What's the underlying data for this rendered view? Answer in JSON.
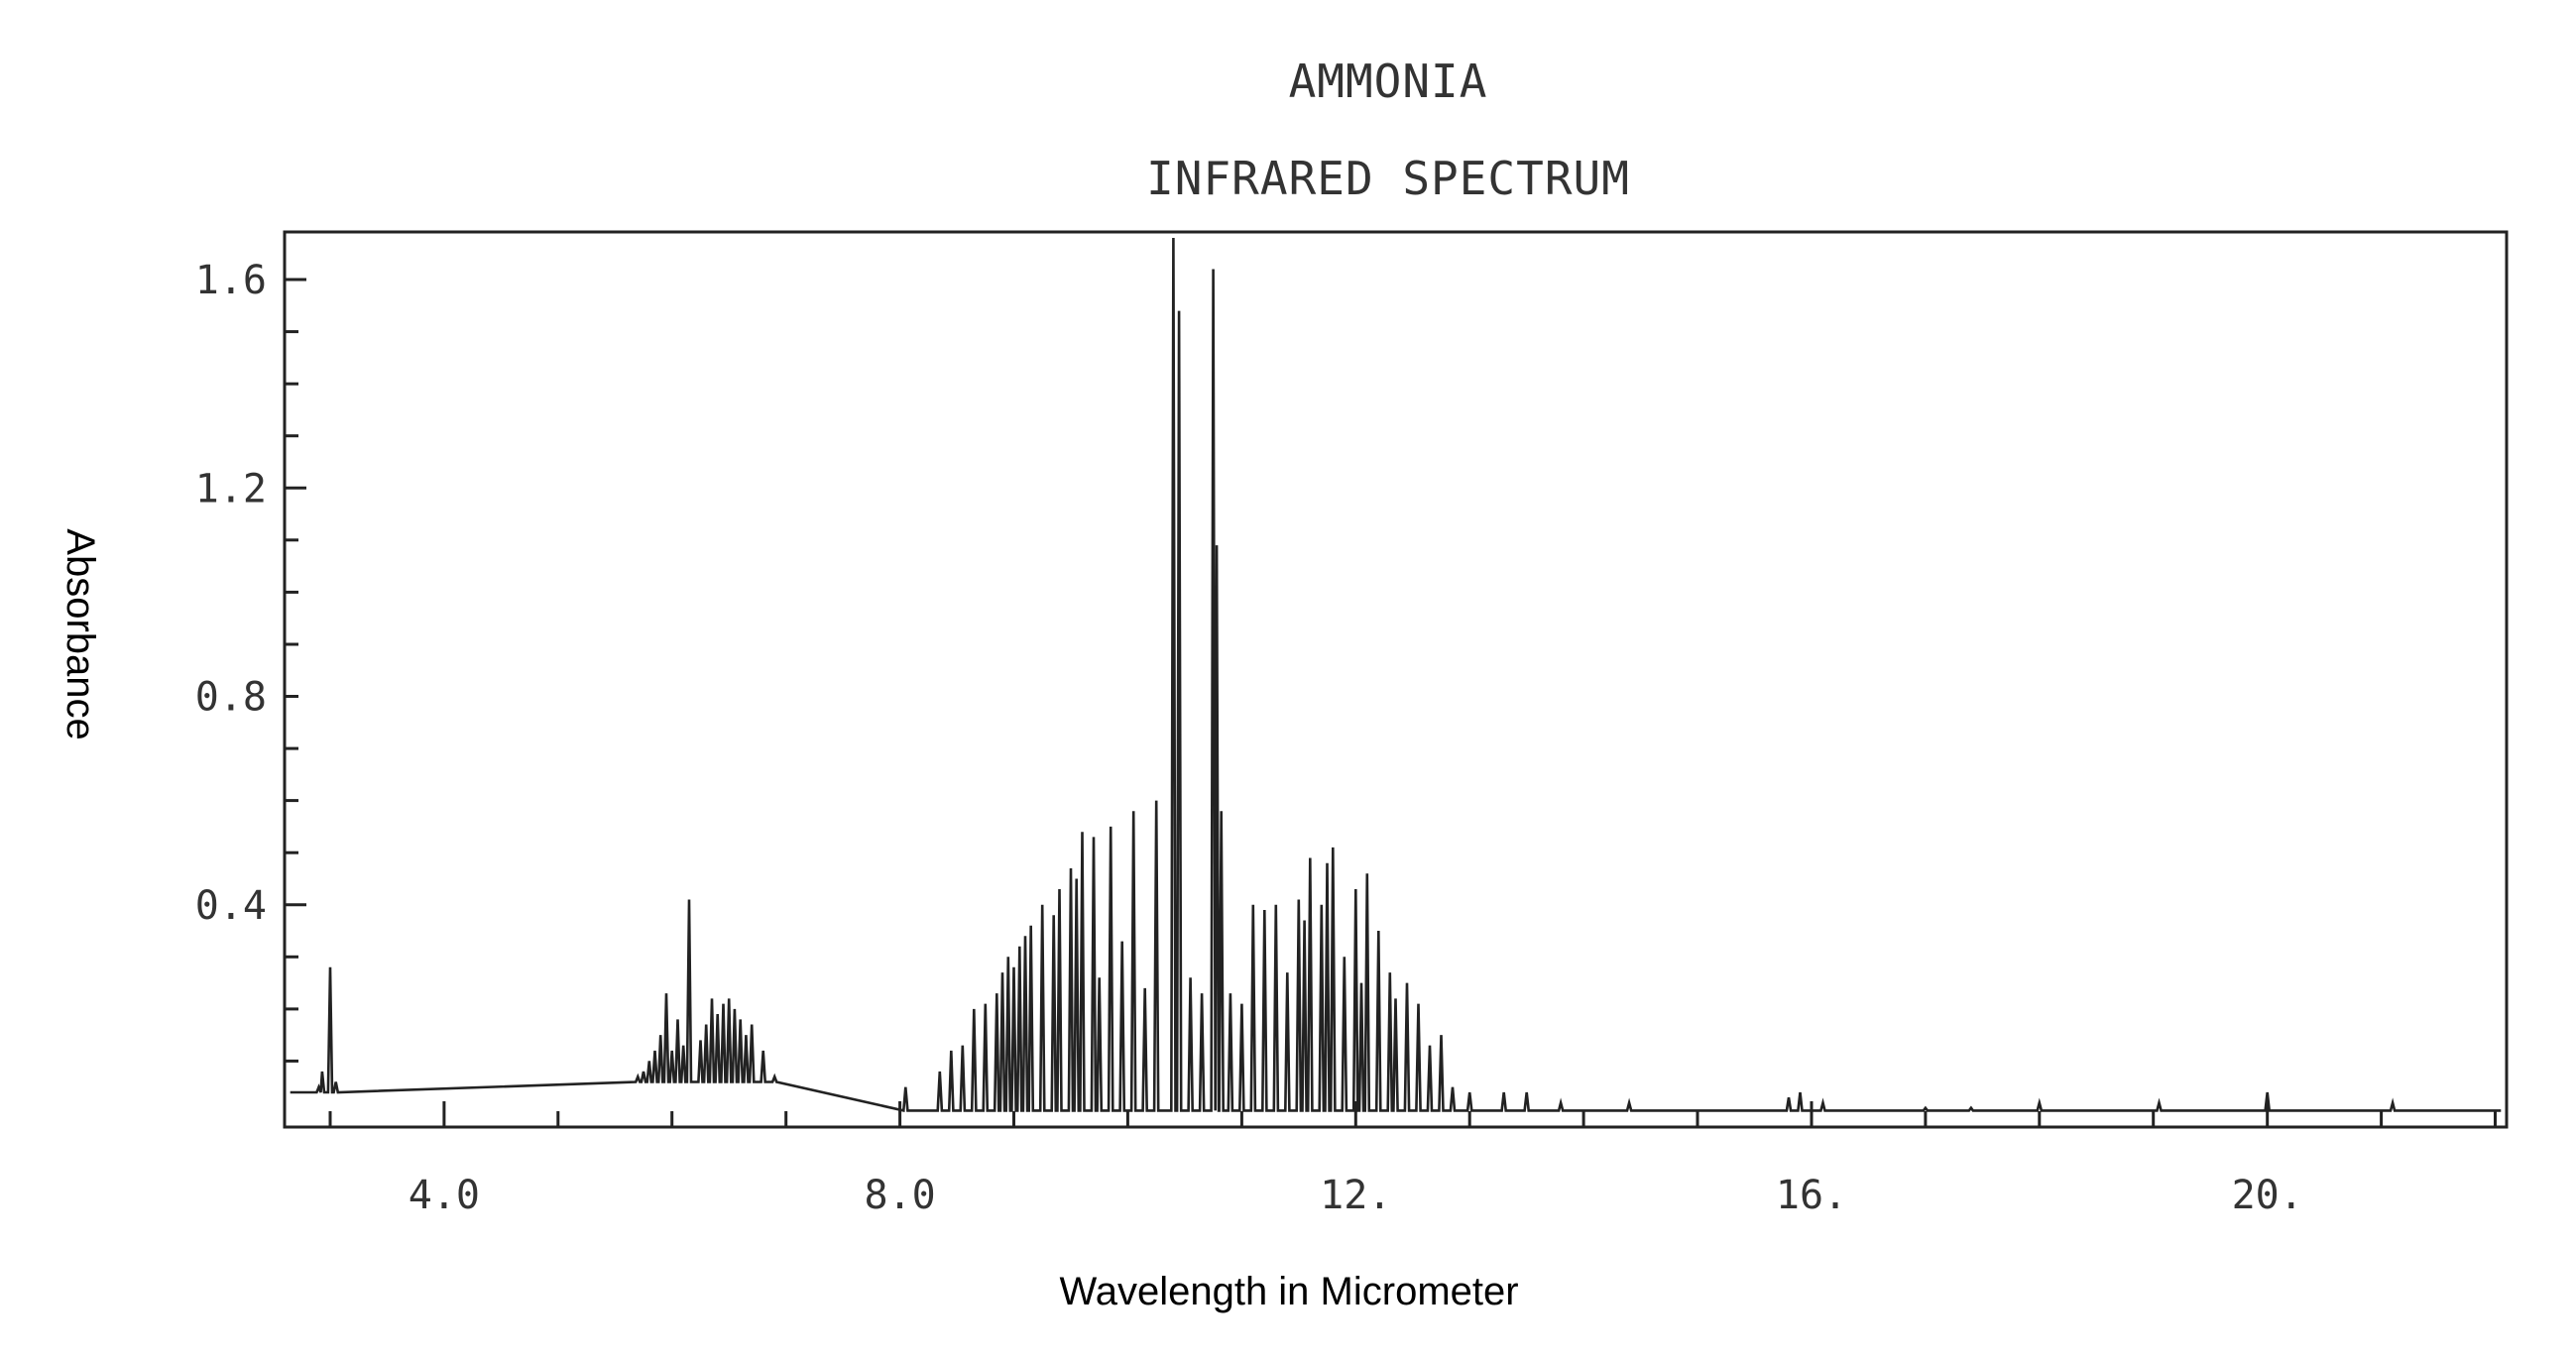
{
  "chart_data": {
    "type": "line",
    "title": "AMMONIA",
    "subtitle": "INFRARED SPECTRUM",
    "xlabel": "Wavelength in Micrometer",
    "ylabel": "Absorbance",
    "xlim": [
      2.6,
      22.1
    ],
    "ylim": [
      0.0,
      1.68
    ],
    "x_ticks": [
      {
        "value": 4.0,
        "label": "4.0"
      },
      {
        "value": 8.0,
        "label": "8.0"
      },
      {
        "value": 12.0,
        "label": "12."
      },
      {
        "value": 16.0,
        "label": "16."
      },
      {
        "value": 20.0,
        "label": "20."
      }
    ],
    "y_ticks": [
      {
        "value": 0.4,
        "label": "0.4"
      },
      {
        "value": 0.8,
        "label": "0.8"
      },
      {
        "value": 1.2,
        "label": "1.2"
      },
      {
        "value": 1.6,
        "label": "1.6"
      }
    ],
    "grid": false,
    "series": [
      {
        "color": "#222222",
        "peaks": [
          [
            2.9,
            0.05
          ],
          [
            2.93,
            0.08
          ],
          [
            3.0,
            0.28
          ],
          [
            3.05,
            0.06
          ],
          [
            5.7,
            0.07
          ],
          [
            5.75,
            0.08
          ],
          [
            5.8,
            0.1
          ],
          [
            5.85,
            0.12
          ],
          [
            5.9,
            0.15
          ],
          [
            5.95,
            0.23
          ],
          [
            6.0,
            0.12
          ],
          [
            6.05,
            0.18
          ],
          [
            6.1,
            0.13
          ],
          [
            6.15,
            0.41
          ],
          [
            6.25,
            0.14
          ],
          [
            6.3,
            0.17
          ],
          [
            6.35,
            0.22
          ],
          [
            6.4,
            0.19
          ],
          [
            6.45,
            0.21
          ],
          [
            6.5,
            0.22
          ],
          [
            6.55,
            0.2
          ],
          [
            6.6,
            0.18
          ],
          [
            6.65,
            0.15
          ],
          [
            6.7,
            0.17
          ],
          [
            6.8,
            0.12
          ],
          [
            6.9,
            0.07
          ],
          [
            8.05,
            0.05
          ],
          [
            8.35,
            0.08
          ],
          [
            8.45,
            0.12
          ],
          [
            8.55,
            0.13
          ],
          [
            8.65,
            0.2
          ],
          [
            8.75,
            0.21
          ],
          [
            8.85,
            0.23
          ],
          [
            8.9,
            0.27
          ],
          [
            8.95,
            0.3
          ],
          [
            9.0,
            0.28
          ],
          [
            9.05,
            0.32
          ],
          [
            9.1,
            0.34
          ],
          [
            9.15,
            0.36
          ],
          [
            9.25,
            0.4
          ],
          [
            9.35,
            0.38
          ],
          [
            9.4,
            0.43
          ],
          [
            9.5,
            0.47
          ],
          [
            9.55,
            0.45
          ],
          [
            9.6,
            0.54
          ],
          [
            9.7,
            0.53
          ],
          [
            9.75,
            0.26
          ],
          [
            9.85,
            0.55
          ],
          [
            9.95,
            0.33
          ],
          [
            10.05,
            0.58
          ],
          [
            10.15,
            0.24
          ],
          [
            10.25,
            0.6
          ],
          [
            10.4,
            1.68
          ],
          [
            10.45,
            1.54
          ],
          [
            10.55,
            0.26
          ],
          [
            10.65,
            0.23
          ],
          [
            10.75,
            1.62
          ],
          [
            10.78,
            1.09
          ],
          [
            10.82,
            0.58
          ],
          [
            10.9,
            0.23
          ],
          [
            11.0,
            0.21
          ],
          [
            11.1,
            0.4
          ],
          [
            11.2,
            0.39
          ],
          [
            11.3,
            0.4
          ],
          [
            11.4,
            0.27
          ],
          [
            11.5,
            0.41
          ],
          [
            11.55,
            0.37
          ],
          [
            11.6,
            0.49
          ],
          [
            11.7,
            0.4
          ],
          [
            11.75,
            0.48
          ],
          [
            11.8,
            0.51
          ],
          [
            11.9,
            0.3
          ],
          [
            12.0,
            0.43
          ],
          [
            12.05,
            0.25
          ],
          [
            12.1,
            0.46
          ],
          [
            12.2,
            0.35
          ],
          [
            12.3,
            0.27
          ],
          [
            12.35,
            0.22
          ],
          [
            12.45,
            0.25
          ],
          [
            12.55,
            0.21
          ],
          [
            12.65,
            0.13
          ],
          [
            12.75,
            0.15
          ],
          [
            12.85,
            0.05
          ],
          [
            13.0,
            0.04
          ],
          [
            13.3,
            0.04
          ],
          [
            13.5,
            0.04
          ],
          [
            13.8,
            0.02
          ],
          [
            14.4,
            0.02
          ],
          [
            15.8,
            0.03
          ],
          [
            15.9,
            0.04
          ],
          [
            16.1,
            0.02
          ],
          [
            17.0,
            0.01
          ],
          [
            17.4,
            0.01
          ],
          [
            18.0,
            0.02
          ],
          [
            19.05,
            0.02
          ],
          [
            20.0,
            0.04
          ],
          [
            21.1,
            0.02
          ]
        ]
      }
    ]
  }
}
